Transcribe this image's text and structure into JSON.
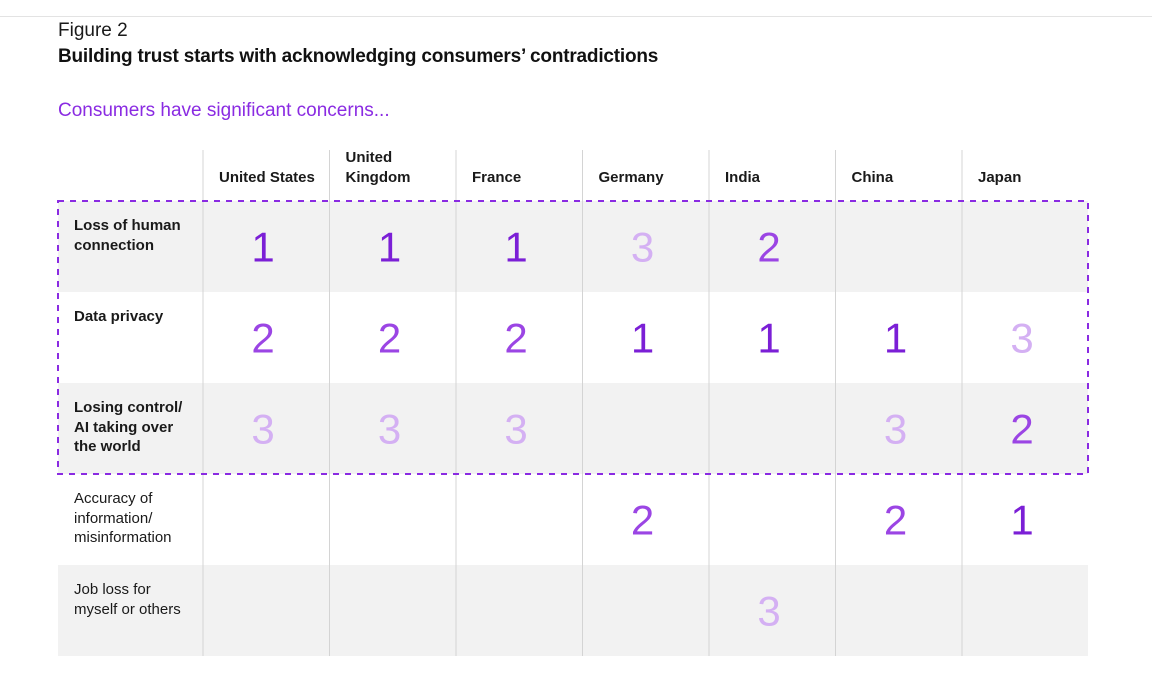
{
  "figure_label": "Figure 2",
  "title": "Building trust starts with acknowledging consumers’ contradictions",
  "subtitle": "Consumers have significant concerns...",
  "colors": {
    "rank1": "#7b1fd6",
    "rank2": "#9b45e4",
    "rank3": "#d4b0f3",
    "accent": "#8a2be2",
    "band": "#f2f2f2"
  },
  "chart_data": {
    "type": "table",
    "columns": [
      {
        "label": "United States"
      },
      {
        "label": "United\nKingdom"
      },
      {
        "label": "France"
      },
      {
        "label": "Germany"
      },
      {
        "label": "India"
      },
      {
        "label": "China"
      },
      {
        "label": "Japan"
      }
    ],
    "rows": [
      {
        "label": "Loss of human\nconnection",
        "highlighted": true,
        "ranks": [
          1,
          1,
          1,
          3,
          2,
          null,
          null
        ]
      },
      {
        "label": "Data privacy",
        "highlighted": true,
        "ranks": [
          2,
          2,
          2,
          1,
          1,
          1,
          3
        ]
      },
      {
        "label": "Losing control/\nAI taking over\nthe world",
        "highlighted": true,
        "ranks": [
          3,
          3,
          3,
          null,
          null,
          3,
          2
        ]
      },
      {
        "label": "Accuracy of\ninformation/\nmisinformation",
        "highlighted": false,
        "ranks": [
          null,
          null,
          null,
          2,
          null,
          2,
          1
        ]
      },
      {
        "label": "Job loss for\nmyself or others",
        "highlighted": false,
        "ranks": [
          null,
          null,
          null,
          null,
          3,
          null,
          null
        ]
      }
    ]
  }
}
